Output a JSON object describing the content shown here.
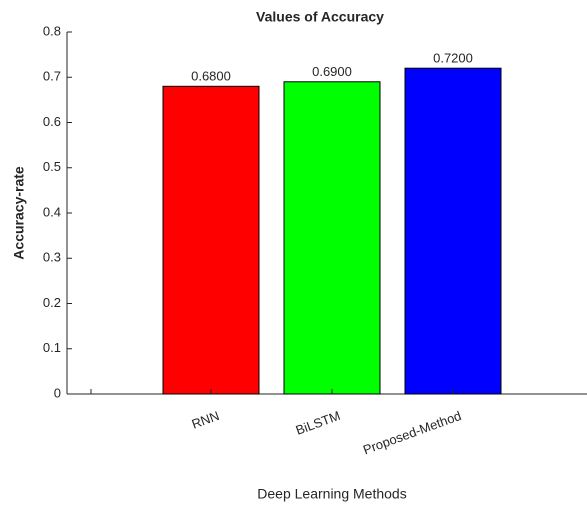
{
  "chart_data": {
    "type": "bar",
    "title": "Values of Accuracy",
    "xlabel": "Deep Learning Methods",
    "ylabel": "Accuracy-rate",
    "categories": [
      "RNN",
      "BiLSTM",
      "Proposed-Method"
    ],
    "values": [
      0.68,
      0.69,
      0.72
    ],
    "value_labels": [
      "0.6800",
      "0.6900",
      "0.7200"
    ],
    "colors": [
      "#ff0000",
      "#00ff00",
      "#0000ff"
    ],
    "ylim": [
      0,
      0.8
    ],
    "yticks": [
      0,
      0.1,
      0.2,
      0.3,
      0.4,
      0.5,
      0.6,
      0.7,
      0.8
    ],
    "grid": false
  }
}
